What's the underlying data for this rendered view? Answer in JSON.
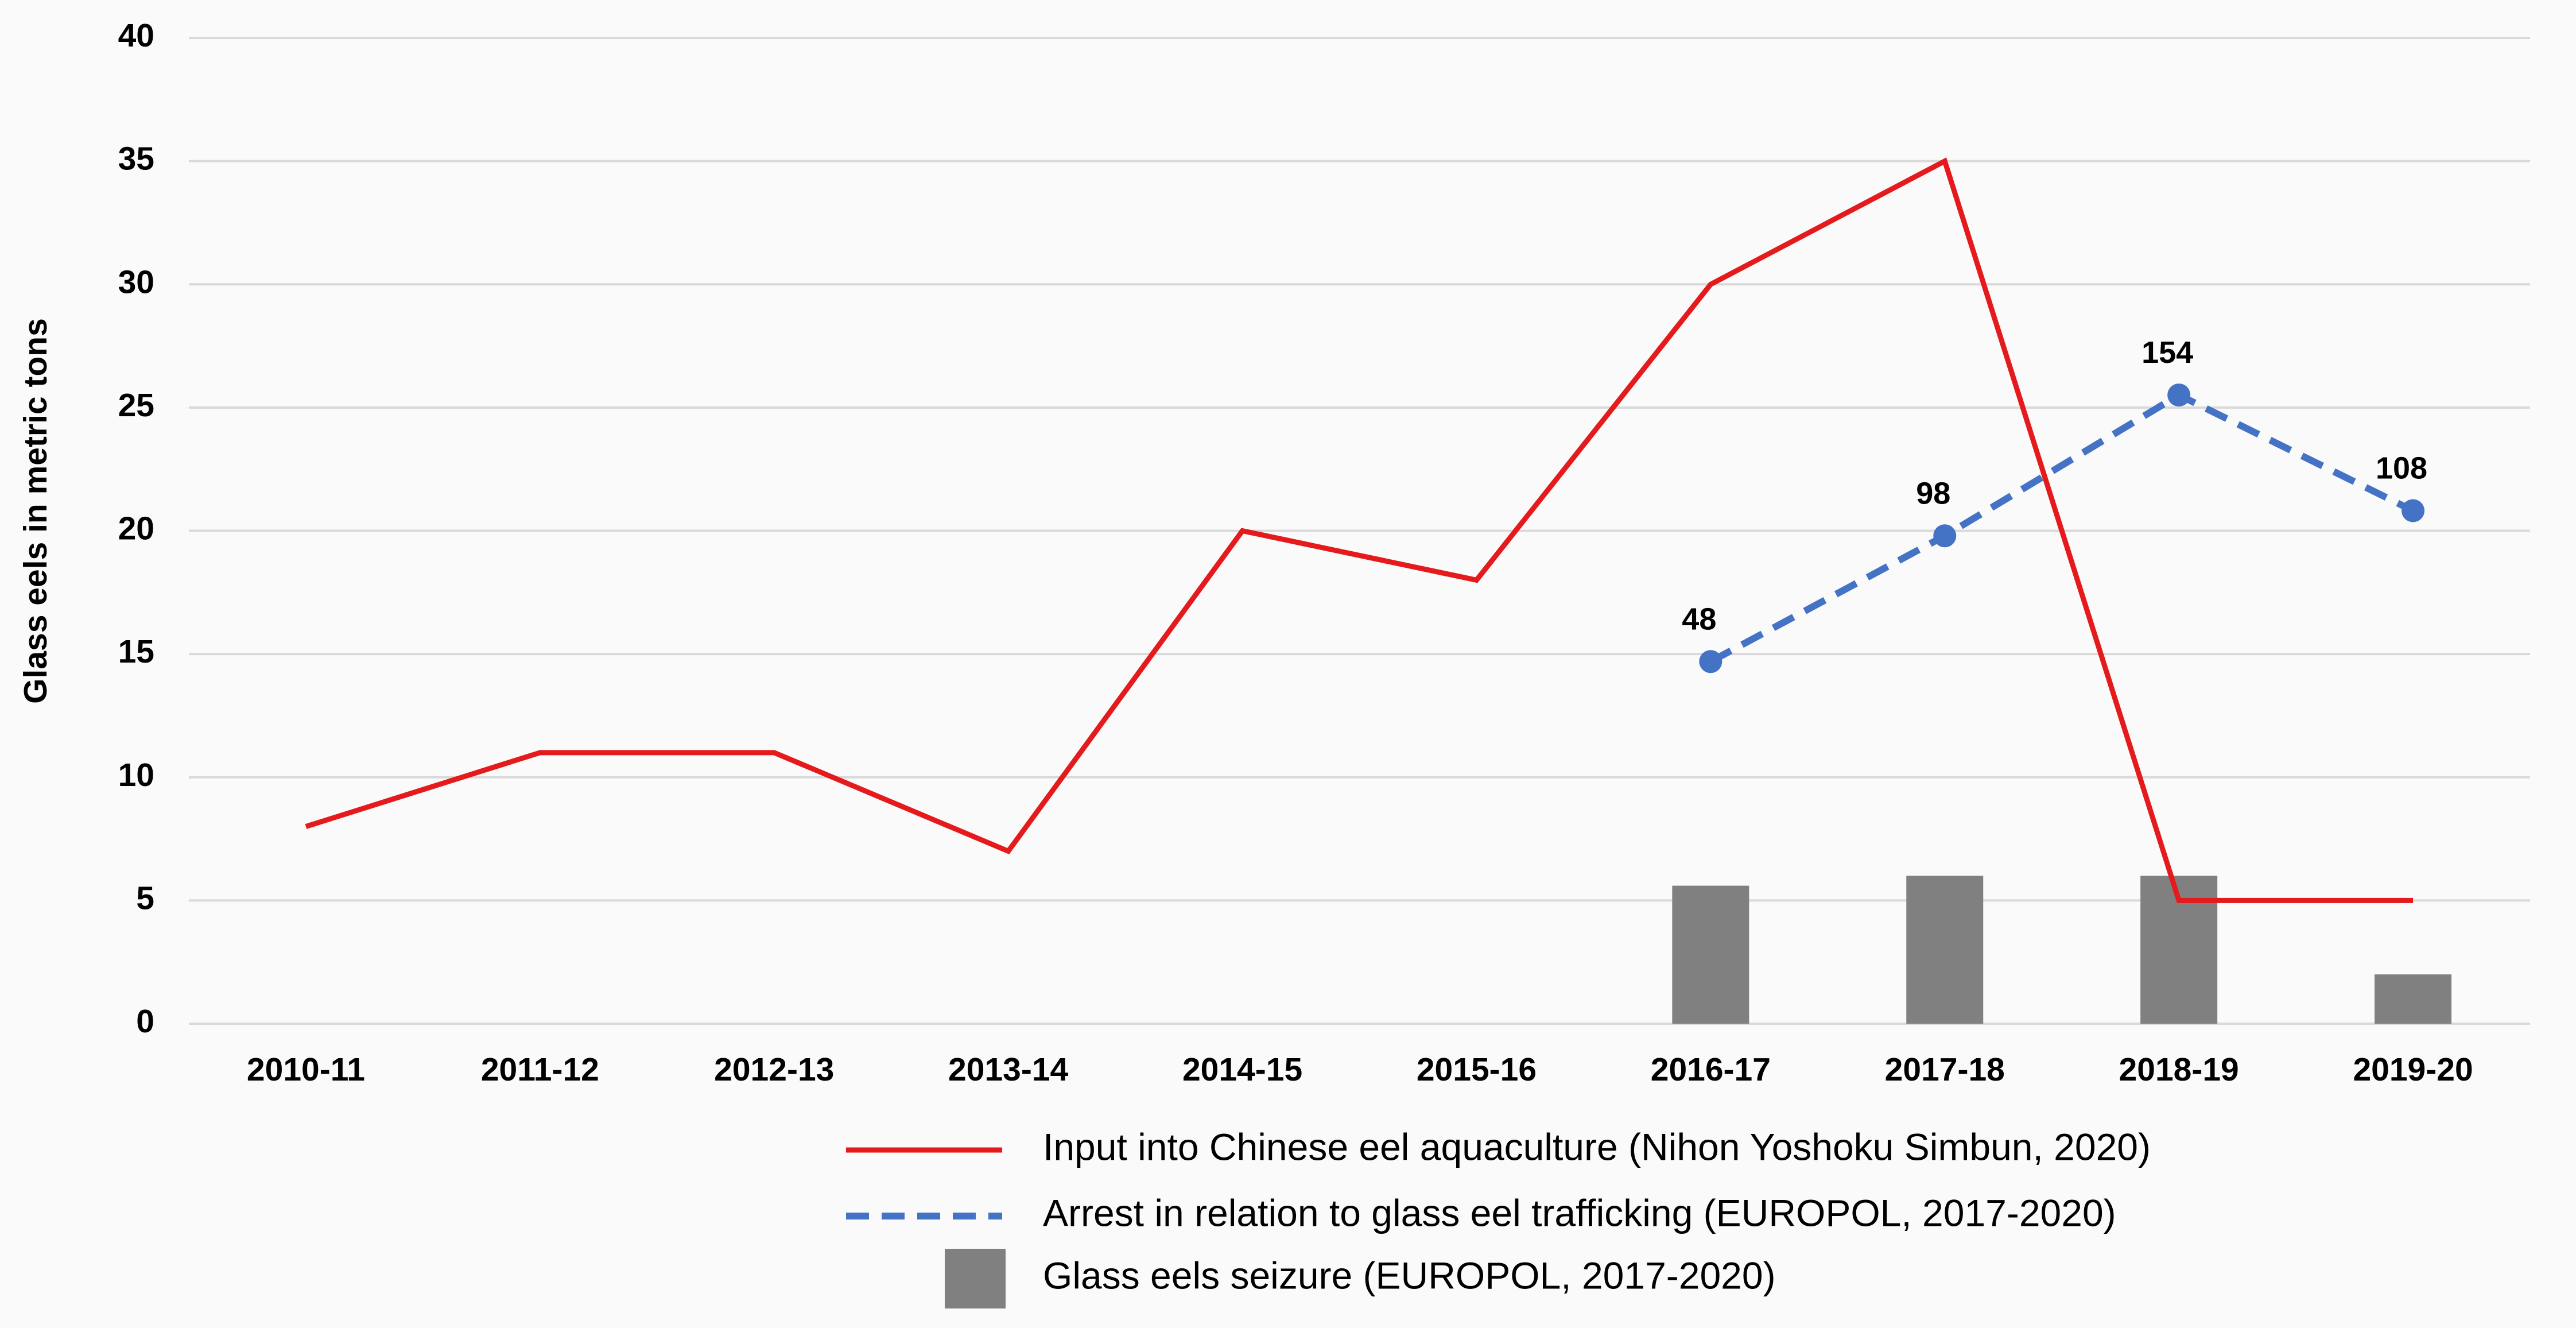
{
  "chart_data": {
    "type": "combo",
    "ylabel": "Glass eels in metric tons",
    "categories": [
      "2010-11",
      "2011-12",
      "2012-13",
      "2013-14",
      "2014-15",
      "2015-16",
      "2016-17",
      "2017-18",
      "2018-19",
      "2019-20"
    ],
    "ylim": [
      0,
      40
    ],
    "yticks": [
      0,
      5,
      10,
      15,
      20,
      25,
      30,
      35,
      40
    ],
    "y2lim": [
      -96,
      296
    ],
    "grid": true,
    "series": [
      {
        "name": "Input into Chinese eel aquaculture (Nihon Yoshoku Simbun, 2020)",
        "type": "line",
        "color": "#e41a1c",
        "dashed": false,
        "values": [
          8,
          11,
          11,
          7,
          20,
          18,
          30,
          35,
          5,
          5
        ]
      },
      {
        "name": "Arrest in relation to glass eel trafficking (EUROPOL, 2017-2020)",
        "type": "line",
        "color": "#4472c4",
        "dashed": true,
        "axis": "y2",
        "markers": true,
        "values": [
          null,
          null,
          null,
          null,
          null,
          null,
          48,
          98,
          154,
          108
        ]
      },
      {
        "name": "Glass eels seizure (EUROPOL, 2017-2020)",
        "type": "bar",
        "color": "#808080",
        "values": [
          null,
          null,
          null,
          null,
          null,
          null,
          5.6,
          6,
          6,
          2
        ]
      }
    ]
  }
}
